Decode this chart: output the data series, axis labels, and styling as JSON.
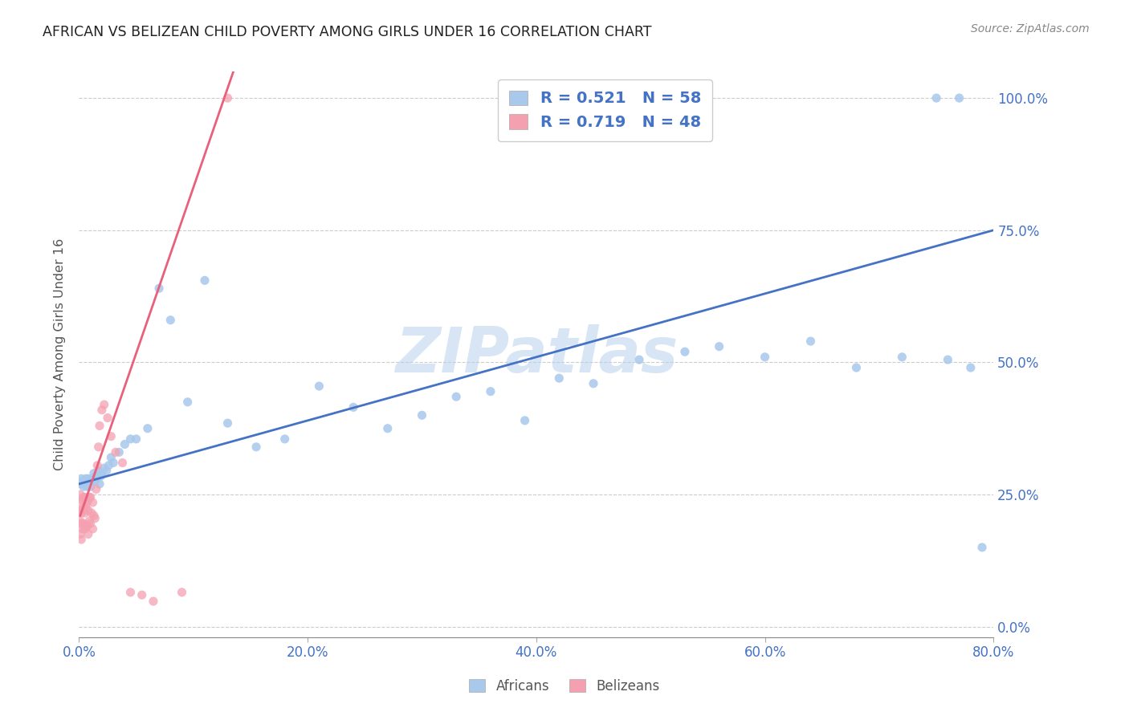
{
  "title": "AFRICAN VS BELIZEAN CHILD POVERTY AMONG GIRLS UNDER 16 CORRELATION CHART",
  "source": "Source: ZipAtlas.com",
  "ylabel": "Child Poverty Among Girls Under 16",
  "xlim": [
    0.0,
    0.8
  ],
  "ylim": [
    -0.02,
    1.05
  ],
  "legend_blue": {
    "R": "0.521",
    "N": "58"
  },
  "legend_pink": {
    "R": "0.719",
    "N": "48"
  },
  "blue_color": "#A8C8EC",
  "pink_color": "#F4A0B0",
  "line_blue": "#4472C4",
  "line_pink": "#E8607A",
  "axis_tick_color": "#4472C4",
  "watermark": "ZIPatlas",
  "african_x": [
    0.001,
    0.002,
    0.003,
    0.004,
    0.005,
    0.006,
    0.007,
    0.008,
    0.009,
    0.01,
    0.011,
    0.012,
    0.013,
    0.014,
    0.015,
    0.016,
    0.017,
    0.018,
    0.019,
    0.02,
    0.022,
    0.024,
    0.026,
    0.028,
    0.03,
    0.035,
    0.04,
    0.045,
    0.05,
    0.06,
    0.07,
    0.08,
    0.095,
    0.11,
    0.13,
    0.155,
    0.18,
    0.21,
    0.24,
    0.27,
    0.3,
    0.33,
    0.36,
    0.39,
    0.42,
    0.45,
    0.49,
    0.53,
    0.56,
    0.6,
    0.64,
    0.68,
    0.72,
    0.75,
    0.76,
    0.77,
    0.78,
    0.79
  ],
  "african_y": [
    0.27,
    0.28,
    0.275,
    0.265,
    0.27,
    0.28,
    0.265,
    0.28,
    0.275,
    0.265,
    0.275,
    0.28,
    0.29,
    0.275,
    0.285,
    0.285,
    0.295,
    0.27,
    0.285,
    0.29,
    0.3,
    0.295,
    0.305,
    0.32,
    0.31,
    0.33,
    0.345,
    0.355,
    0.355,
    0.375,
    0.64,
    0.58,
    0.425,
    0.655,
    0.385,
    0.34,
    0.355,
    0.455,
    0.415,
    0.375,
    0.4,
    0.435,
    0.445,
    0.39,
    0.47,
    0.46,
    0.505,
    0.52,
    0.53,
    0.51,
    0.54,
    0.49,
    0.51,
    1.0,
    0.505,
    1.0,
    0.49,
    0.15
  ],
  "belizean_x": [
    0.001,
    0.001,
    0.001,
    0.001,
    0.002,
    0.002,
    0.002,
    0.002,
    0.003,
    0.003,
    0.003,
    0.004,
    0.004,
    0.004,
    0.005,
    0.005,
    0.005,
    0.006,
    0.006,
    0.007,
    0.007,
    0.008,
    0.008,
    0.008,
    0.009,
    0.009,
    0.01,
    0.01,
    0.011,
    0.012,
    0.012,
    0.013,
    0.014,
    0.015,
    0.016,
    0.017,
    0.018,
    0.02,
    0.022,
    0.025,
    0.028,
    0.032,
    0.038,
    0.045,
    0.055,
    0.065,
    0.09,
    0.13
  ],
  "belizean_y": [
    0.25,
    0.22,
    0.2,
    0.175,
    0.235,
    0.215,
    0.195,
    0.165,
    0.24,
    0.22,
    0.185,
    0.245,
    0.225,
    0.195,
    0.245,
    0.215,
    0.185,
    0.225,
    0.19,
    0.235,
    0.19,
    0.24,
    0.22,
    0.175,
    0.245,
    0.2,
    0.245,
    0.195,
    0.215,
    0.235,
    0.185,
    0.21,
    0.205,
    0.26,
    0.305,
    0.34,
    0.38,
    0.41,
    0.42,
    0.395,
    0.36,
    0.33,
    0.31,
    0.065,
    0.06,
    0.048,
    0.065,
    1.0
  ],
  "blue_line_x": [
    0.0,
    0.8
  ],
  "blue_line_y": [
    0.27,
    0.75
  ],
  "pink_line_x": [
    0.001,
    0.135
  ],
  "pink_line_y": [
    0.21,
    1.05
  ],
  "dpi": 100
}
